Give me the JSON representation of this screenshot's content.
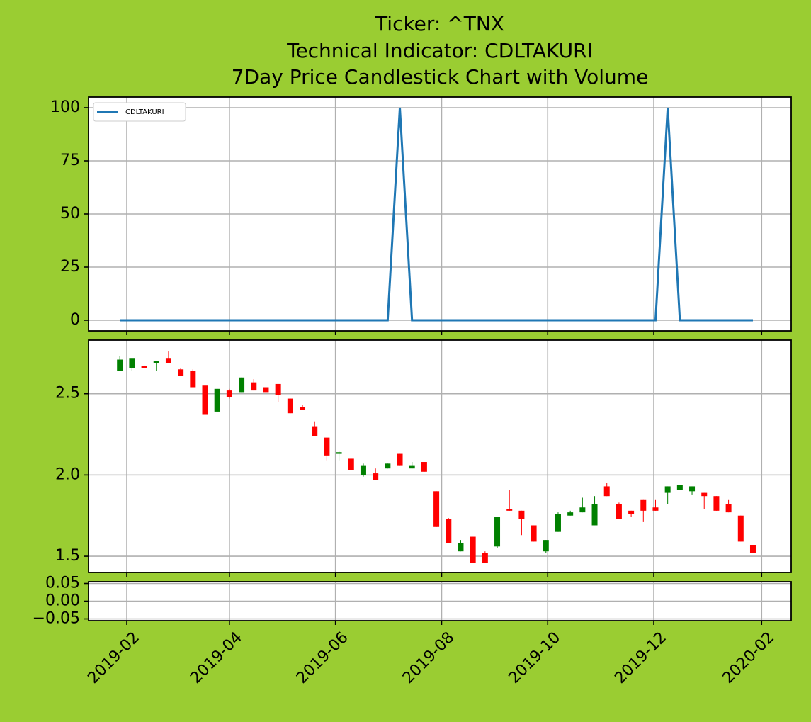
{
  "chart_data": [
    {
      "type": "line",
      "title": [
        "Ticker: ^TNX",
        "Technical Indicator: CDLTAKURI",
        "7Day Price Candlestick Chart with Volume"
      ],
      "x": [
        "2019-01-28",
        "2019-02-04",
        "2019-02-11",
        "2019-02-18",
        "2019-02-25",
        "2019-03-04",
        "2019-03-11",
        "2019-03-18",
        "2019-03-25",
        "2019-04-01",
        "2019-04-08",
        "2019-04-15",
        "2019-04-22",
        "2019-04-29",
        "2019-05-06",
        "2019-05-13",
        "2019-05-20",
        "2019-05-27",
        "2019-06-03",
        "2019-06-10",
        "2019-06-17",
        "2019-06-24",
        "2019-07-01",
        "2019-07-08",
        "2019-07-15",
        "2019-07-22",
        "2019-07-29",
        "2019-08-05",
        "2019-08-12",
        "2019-08-19",
        "2019-08-26",
        "2019-09-02",
        "2019-09-09",
        "2019-09-16",
        "2019-09-23",
        "2019-09-30",
        "2019-10-07",
        "2019-10-14",
        "2019-10-21",
        "2019-10-28",
        "2019-11-04",
        "2019-11-11",
        "2019-11-18",
        "2019-11-25",
        "2019-12-02",
        "2019-12-09",
        "2019-12-16",
        "2019-12-23",
        "2019-12-30",
        "2020-01-06",
        "2020-01-13",
        "2020-01-20",
        "2020-01-27"
      ],
      "series": [
        {
          "name": "CDLTAKURI",
          "color": "#1f77b4",
          "values": [
            0,
            0,
            0,
            0,
            0,
            0,
            0,
            0,
            0,
            0,
            0,
            0,
            0,
            0,
            0,
            0,
            0,
            0,
            0,
            0,
            0,
            0,
            0,
            100,
            0,
            0,
            0,
            0,
            0,
            0,
            0,
            0,
            0,
            0,
            0,
            0,
            0,
            0,
            0,
            0,
            0,
            0,
            0,
            0,
            0,
            100,
            0,
            0,
            0,
            0,
            0,
            0,
            0
          ]
        }
      ],
      "ylim": [
        -5,
        105
      ],
      "yticks": [
        0,
        25,
        50,
        75,
        100
      ],
      "grid": true,
      "legend": "upper left"
    },
    {
      "type": "candlestick",
      "x": [
        "2019-01-28",
        "2019-02-04",
        "2019-02-11",
        "2019-02-18",
        "2019-02-25",
        "2019-03-04",
        "2019-03-11",
        "2019-03-18",
        "2019-03-25",
        "2019-04-01",
        "2019-04-08",
        "2019-04-15",
        "2019-04-22",
        "2019-04-29",
        "2019-05-06",
        "2019-05-13",
        "2019-05-20",
        "2019-05-27",
        "2019-06-03",
        "2019-06-10",
        "2019-06-17",
        "2019-06-24",
        "2019-07-01",
        "2019-07-08",
        "2019-07-15",
        "2019-07-22",
        "2019-07-29",
        "2019-08-05",
        "2019-08-12",
        "2019-08-19",
        "2019-08-26",
        "2019-09-02",
        "2019-09-09",
        "2019-09-16",
        "2019-09-23",
        "2019-09-30",
        "2019-10-07",
        "2019-10-14",
        "2019-10-21",
        "2019-10-28",
        "2019-11-04",
        "2019-11-11",
        "2019-11-18",
        "2019-11-25",
        "2019-12-02",
        "2019-12-09",
        "2019-12-16",
        "2019-12-23",
        "2019-12-30",
        "2020-01-06",
        "2020-01-13",
        "2020-01-20",
        "2020-01-27"
      ],
      "open": [
        2.64,
        2.66,
        2.67,
        2.69,
        2.72,
        2.65,
        2.64,
        2.55,
        2.39,
        2.52,
        2.51,
        2.57,
        2.54,
        2.56,
        2.47,
        2.42,
        2.3,
        2.23,
        2.13,
        2.1,
        2.0,
        2.01,
        2.04,
        2.13,
        2.04,
        2.08,
        1.9,
        1.73,
        1.53,
        1.62,
        1.52,
        1.56,
        1.79,
        1.78,
        1.69,
        1.53,
        1.65,
        1.75,
        1.77,
        1.69,
        1.93,
        1.82,
        1.78,
        1.85,
        1.8,
        1.89,
        1.91,
        1.9,
        1.89,
        1.87,
        1.82,
        1.75,
        1.57
      ],
      "high": [
        2.73,
        2.72,
        2.675,
        2.7,
        2.76,
        2.66,
        2.65,
        2.55,
        2.53,
        2.53,
        2.6,
        2.59,
        2.54,
        2.56,
        2.47,
        2.43,
        2.33,
        2.23,
        2.15,
        2.1,
        2.07,
        2.04,
        2.07,
        2.13,
        2.08,
        2.08,
        1.9,
        1.735,
        1.6,
        1.62,
        1.53,
        1.74,
        1.91,
        1.78,
        1.69,
        1.6,
        1.77,
        1.78,
        1.86,
        1.87,
        1.95,
        1.83,
        1.78,
        1.85,
        1.85,
        1.93,
        1.94,
        1.93,
        1.89,
        1.87,
        1.85,
        1.75,
        1.57
      ],
      "low": [
        2.64,
        2.64,
        2.655,
        2.64,
        2.69,
        2.61,
        2.54,
        2.37,
        2.39,
        2.47,
        2.51,
        2.52,
        2.51,
        2.45,
        2.38,
        2.4,
        2.24,
        2.09,
        2.09,
        2.03,
        1.99,
        1.97,
        2.04,
        2.06,
        2.04,
        2.02,
        1.68,
        1.58,
        1.53,
        1.46,
        1.46,
        1.55,
        1.78,
        1.63,
        1.59,
        1.52,
        1.65,
        1.75,
        1.77,
        1.69,
        1.87,
        1.73,
        1.74,
        1.71,
        1.78,
        1.82,
        1.91,
        1.88,
        1.79,
        1.78,
        1.77,
        1.59,
        1.52
      ],
      "close": [
        2.71,
        2.72,
        2.66,
        2.7,
        2.69,
        2.61,
        2.54,
        2.37,
        2.53,
        2.48,
        2.6,
        2.52,
        2.51,
        2.49,
        2.38,
        2.4,
        2.24,
        2.12,
        2.14,
        2.03,
        2.06,
        1.97,
        2.07,
        2.06,
        2.06,
        2.02,
        1.68,
        1.58,
        1.58,
        1.46,
        1.46,
        1.74,
        1.78,
        1.73,
        1.59,
        1.6,
        1.76,
        1.77,
        1.8,
        1.82,
        1.87,
        1.73,
        1.76,
        1.78,
        1.78,
        1.93,
        1.94,
        1.93,
        1.87,
        1.78,
        1.77,
        1.59,
        1.52
      ],
      "up_color": "#008000",
      "down_color": "#ff0000",
      "ylim": [
        1.4,
        2.83
      ],
      "yticks": [
        1.5,
        {
          "value": 2,
          "label": "2.0"
        },
        2.5
      ],
      "grid": true
    },
    {
      "type": "bar",
      "x": [
        "2019-01-28",
        "2019-02-04",
        "2019-02-11",
        "2019-02-18",
        "2019-02-25",
        "2019-03-04",
        "2019-03-11",
        "2019-03-18",
        "2019-03-25",
        "2019-04-01",
        "2019-04-08",
        "2019-04-15",
        "2019-04-22",
        "2019-04-29",
        "2019-05-06",
        "2019-05-13",
        "2019-05-20",
        "2019-05-27",
        "2019-06-03",
        "2019-06-10",
        "2019-06-17",
        "2019-06-24",
        "2019-07-01",
        "2019-07-08",
        "2019-07-15",
        "2019-07-22",
        "2019-07-29",
        "2019-08-05",
        "2019-08-12",
        "2019-08-19",
        "2019-08-26",
        "2019-09-02",
        "2019-09-09",
        "2019-09-16",
        "2019-09-23",
        "2019-09-30",
        "2019-10-07",
        "2019-10-14",
        "2019-10-21",
        "2019-10-28",
        "2019-11-04",
        "2019-11-11",
        "2019-11-18",
        "2019-11-25",
        "2019-12-02",
        "2019-12-09",
        "2019-12-16",
        "2019-12-23",
        "2019-12-30",
        "2020-01-06",
        "2020-01-13",
        "2020-01-20",
        "2020-01-27"
      ],
      "values": [
        0,
        0,
        0,
        0,
        0,
        0,
        0,
        0,
        0,
        0,
        0,
        0,
        0,
        0,
        0,
        0,
        0,
        0,
        0,
        0,
        0,
        0,
        0,
        0,
        0,
        0,
        0,
        0,
        0,
        0,
        0,
        0,
        0,
        0,
        0,
        0,
        0,
        0,
        0,
        0,
        0,
        0,
        0,
        0,
        0,
        0,
        0,
        0,
        0,
        0,
        0,
        0,
        0
      ],
      "ylim": [
        -0.055,
        0.055
      ],
      "yticks": [
        {
          "value": -0.05,
          "label": "−0.05"
        },
        {
          "value": 0,
          "label": "0.00"
        },
        {
          "value": 0.05,
          "label": "0.05"
        }
      ],
      "xlim": [
        "2019-01-10",
        "2020-02-18"
      ],
      "xticks": [
        "2019-02",
        "2019-04",
        "2019-06",
        "2019-08",
        "2019-10",
        "2019-12",
        "2020-02"
      ],
      "grid": true
    }
  ]
}
